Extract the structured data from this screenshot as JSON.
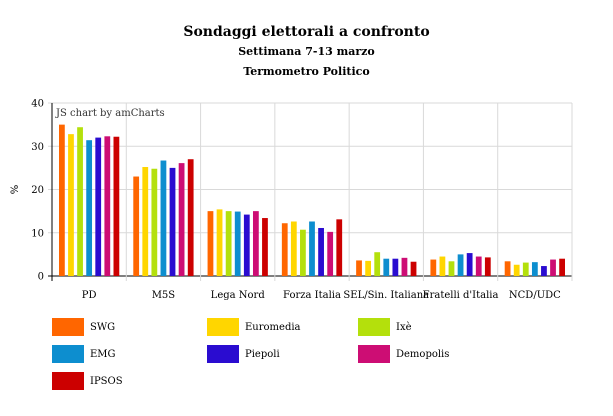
{
  "chart_data": {
    "type": "bar",
    "title": "Sondaggi elettorali a confronto",
    "subtitles": [
      "Settimana 7-13 marzo",
      "Termometro Politico"
    ],
    "ylabel": "%",
    "xlabel": "",
    "ylim": [
      0,
      40
    ],
    "yticks": [
      0,
      10,
      20,
      30,
      40
    ],
    "grid": true,
    "legend_position": "bottom",
    "credit": "JS chart by amCharts",
    "categories": [
      "PD",
      "M5S",
      "Lega Nord",
      "Forza Italia",
      "SEL/Sin. Italiana",
      "Fratelli d'Italia",
      "NCD/UDC"
    ],
    "series": [
      {
        "name": "SWG",
        "color": "#ff6600",
        "values": [
          35.0,
          23.0,
          15.0,
          12.2,
          3.6,
          3.8,
          3.4
        ]
      },
      {
        "name": "Euromedia",
        "color": "#ffd600",
        "values": [
          32.8,
          25.2,
          15.4,
          12.6,
          3.5,
          4.5,
          2.6
        ]
      },
      {
        "name": "Ixè",
        "color": "#b4e00c",
        "values": [
          34.4,
          24.8,
          15.0,
          10.7,
          5.5,
          3.4,
          3.1
        ]
      },
      {
        "name": "EMG",
        "color": "#0d8ecf",
        "values": [
          31.4,
          26.7,
          14.9,
          12.6,
          4.0,
          5.0,
          3.2
        ]
      },
      {
        "name": "Piepoli",
        "color": "#2a0cd0",
        "values": [
          32.0,
          25.0,
          14.2,
          11.1,
          4.0,
          5.3,
          2.3
        ]
      },
      {
        "name": "Demopolis",
        "color": "#cd0d74",
        "values": [
          32.3,
          26.1,
          15.0,
          10.2,
          4.2,
          4.5,
          3.8
        ]
      },
      {
        "name": "IPSOS",
        "color": "#cc0000",
        "values": [
          32.2,
          27.0,
          13.4,
          13.1,
          3.3,
          4.3,
          4.0
        ]
      }
    ]
  }
}
